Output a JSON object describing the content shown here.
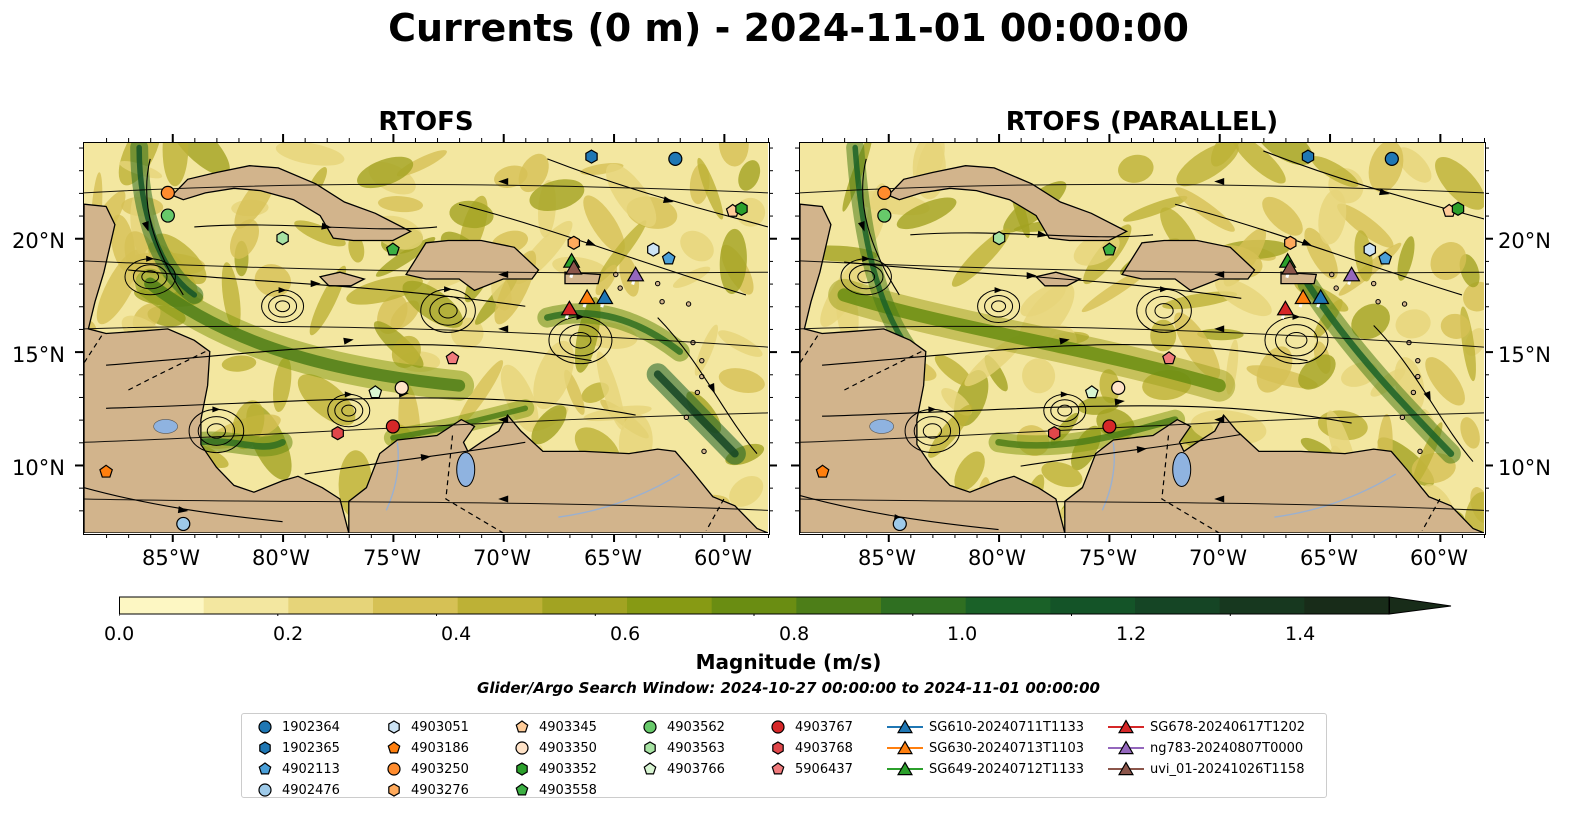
{
  "title": "Currents (0 m) - 2024-11-01 00:00:00",
  "panels": [
    {
      "title": "RTOFS"
    },
    {
      "title": "RTOFS (PARALLEL)"
    }
  ],
  "lon_ticks": [
    "85°W",
    "80°W",
    "75°W",
    "70°W",
    "65°W",
    "60°W"
  ],
  "lat_ticks": [
    "20°N",
    "15°N",
    "10°N"
  ],
  "colorbar": {
    "label": "Magnitude (m/s)",
    "ticks": [
      "0.0",
      "0.2",
      "0.4",
      "0.6",
      "0.8",
      "1.0",
      "1.2",
      "1.4"
    ],
    "colors": [
      "#fdf7c3",
      "#f3e7a0",
      "#e6d479",
      "#d6c155",
      "#bdb136",
      "#a2a322",
      "#879a14",
      "#6a8d12",
      "#4d7e18",
      "#2f6f21",
      "#1a6128",
      "#145428",
      "#154525",
      "#17381f",
      "#182c19"
    ]
  },
  "search_window": "Glider/Argo Search Window: 2024-10-27 00:00:00 to 2024-11-01 00:00:00",
  "legend": [
    {
      "label": "1902364",
      "color": "#1f77b4",
      "marker": "circle"
    },
    {
      "label": "1902365",
      "color": "#1f77b4",
      "marker": "hexagon"
    },
    {
      "label": "4902113",
      "color": "#4a9fd8",
      "marker": "pentagon"
    },
    {
      "label": "4902476",
      "color": "#9ecae9",
      "marker": "circle"
    },
    {
      "label": "4903051",
      "color": "#cde4f5",
      "marker": "hexagon"
    },
    {
      "label": "4903186",
      "color": "#ff7f0e",
      "marker": "pentagon"
    },
    {
      "label": "4903250",
      "color": "#ff8c2e",
      "marker": "circle"
    },
    {
      "label": "4903276",
      "color": "#ffaa5c",
      "marker": "hexagon"
    },
    {
      "label": "4903345",
      "color": "#ffcc99",
      "marker": "pentagon"
    },
    {
      "label": "4903350",
      "color": "#ffe3c8",
      "marker": "circle"
    },
    {
      "label": "4903352",
      "color": "#2ca02c",
      "marker": "hexagon"
    },
    {
      "label": "4903558",
      "color": "#3cb043",
      "marker": "pentagon"
    },
    {
      "label": "4903562",
      "color": "#67c96a",
      "marker": "circle"
    },
    {
      "label": "4903563",
      "color": "#a7e3a3",
      "marker": "hexagon"
    },
    {
      "label": "4903766",
      "color": "#d8f5d2",
      "marker": "pentagon"
    },
    {
      "label": "4903767",
      "color": "#d62728",
      "marker": "circle"
    },
    {
      "label": "4903768",
      "color": "#e0474a",
      "marker": "hexagon"
    },
    {
      "label": "5906437",
      "color": "#f07a7c",
      "marker": "pentagon"
    },
    {
      "label": "SG610-20240711T1133",
      "color": "#1f77b4",
      "marker": "triangle"
    },
    {
      "label": "SG630-20240713T1103",
      "color": "#ff7f0e",
      "marker": "triangle"
    },
    {
      "label": "SG649-20240712T1133",
      "color": "#2ca02c",
      "marker": "triangle"
    },
    {
      "label": "SG678-20240617T1202",
      "color": "#d62728",
      "marker": "triangle"
    },
    {
      "label": "ng783-20240807T0000",
      "color": "#9467bd",
      "marker": "triangle"
    },
    {
      "label": "uvi_01-20241026T1158",
      "color": "#8c564b",
      "marker": "triangle"
    }
  ],
  "map_extent": {
    "lon": [
      -89,
      -58
    ],
    "lat": [
      7,
      24.2
    ]
  },
  "colors": {
    "land": "#d2b48c",
    "lake": "#8fb3e0",
    "river": "#9ab0d0"
  },
  "observations": [
    {
      "id": "1902364",
      "lon": -62.2,
      "lat": 23.5
    },
    {
      "id": "1902365",
      "lon": -66.0,
      "lat": 23.6
    },
    {
      "id": "4902113",
      "lon": -62.5,
      "lat": 19.1
    },
    {
      "id": "4902476",
      "lon": -84.5,
      "lat": 7.4
    },
    {
      "id": "4903051",
      "lon": -63.2,
      "lat": 19.5
    },
    {
      "id": "4903186",
      "lon": -88.0,
      "lat": 9.7
    },
    {
      "id": "4903250",
      "lon": -85.2,
      "lat": 22.0
    },
    {
      "id": "4903276",
      "lon": -66.8,
      "lat": 19.8
    },
    {
      "id": "4903345",
      "lon": -59.6,
      "lat": 21.2
    },
    {
      "id": "4903350",
      "lon": -74.6,
      "lat": 13.4
    },
    {
      "id": "4903352",
      "lon": -59.2,
      "lat": 21.3
    },
    {
      "id": "4903558",
      "lon": -75.0,
      "lat": 19.5
    },
    {
      "id": "4903562",
      "lon": -85.2,
      "lat": 21.0
    },
    {
      "id": "4903563",
      "lon": -80.0,
      "lat": 20.0
    },
    {
      "id": "4903766",
      "lon": -75.8,
      "lat": 13.2
    },
    {
      "id": "4903767",
      "lon": -75.0,
      "lat": 11.7
    },
    {
      "id": "4903768",
      "lon": -77.5,
      "lat": 11.4
    },
    {
      "id": "5906437",
      "lon": -72.3,
      "lat": 14.7
    }
  ],
  "gliders": [
    {
      "id": "SG610-20240711T1133",
      "lon": -65.4,
      "lat": 17.4
    },
    {
      "id": "SG630-20240713T1103",
      "lon": -66.2,
      "lat": 17.4
    },
    {
      "id": "SG649-20240712T1133",
      "lon": -66.9,
      "lat": 19.0
    },
    {
      "id": "SG678-20240617T1202",
      "lon": -67.0,
      "lat": 16.9
    },
    {
      "id": "ng783-20240807T0000",
      "lon": -64.0,
      "lat": 18.4
    },
    {
      "id": "uvi_01-20241026T1158",
      "lon": -66.8,
      "lat": 18.7
    }
  ]
}
